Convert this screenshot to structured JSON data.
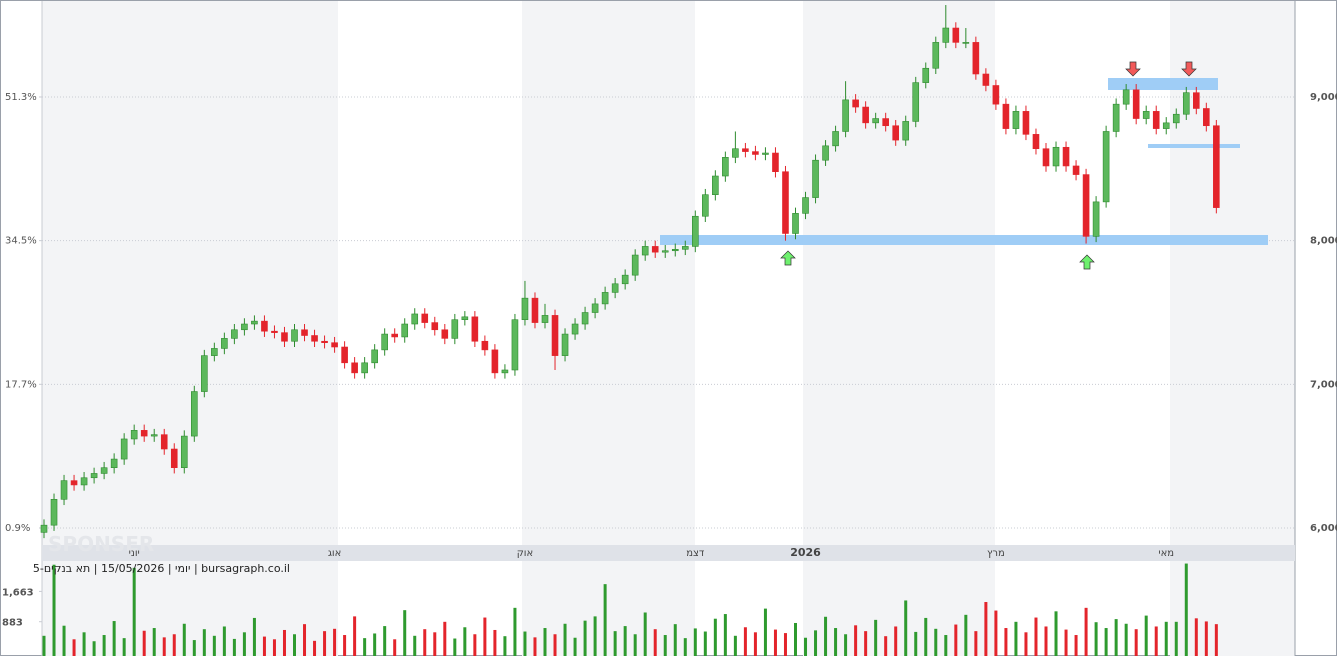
{
  "chart_data": {
    "type": "candlestick",
    "title": "יומי | 15/05/2026 | תא בנקים-5 | bursagraph.co.il",
    "watermark": "SPONSER",
    "categories": [
      null,
      null,
      null,
      null,
      null,
      null,
      null,
      null,
      null,
      "יוני",
      null,
      null,
      null,
      null,
      null,
      null,
      null,
      null,
      null,
      null,
      null,
      null,
      null,
      null,
      null,
      null,
      null,
      null,
      null,
      "אוג",
      null,
      null,
      null,
      null,
      null,
      null,
      null,
      null,
      null,
      null,
      null,
      null,
      null,
      null,
      null,
      null,
      null,
      null,
      "אוק",
      null,
      null,
      null,
      null,
      null,
      null,
      null,
      null,
      null,
      null,
      null,
      null,
      null,
      null,
      null,
      null,
      "דצמ",
      null,
      null,
      null,
      null,
      null,
      null,
      null,
      null,
      null,
      null,
      "2026",
      null,
      null,
      null,
      null,
      null,
      null,
      null,
      null,
      null,
      null,
      null,
      null,
      null,
      null,
      null,
      null,
      null,
      null,
      "מרץ",
      null,
      null,
      null,
      null,
      null,
      null,
      null,
      null,
      null,
      null,
      null,
      null,
      null,
      null,
      null,
      null,
      "מאי",
      null,
      null,
      null,
      null,
      null
    ],
    "ohlc": [
      [
        5970,
        6060,
        5930,
        6020
      ],
      [
        6020,
        6240,
        5980,
        6200
      ],
      [
        6200,
        6370,
        6160,
        6330
      ],
      [
        6330,
        6370,
        6260,
        6300
      ],
      [
        6300,
        6390,
        6260,
        6350
      ],
      [
        6350,
        6420,
        6310,
        6380
      ],
      [
        6380,
        6460,
        6340,
        6420
      ],
      [
        6420,
        6520,
        6380,
        6480
      ],
      [
        6480,
        6660,
        6440,
        6620
      ],
      [
        6620,
        6720,
        6580,
        6680
      ],
      [
        6680,
        6720,
        6600,
        6640
      ],
      [
        6640,
        6690,
        6600,
        6650
      ],
      [
        6650,
        6690,
        6510,
        6550
      ],
      [
        6550,
        6590,
        6380,
        6420
      ],
      [
        6420,
        6680,
        6380,
        6640
      ],
      [
        6640,
        6990,
        6600,
        6950
      ],
      [
        6950,
        7240,
        6910,
        7200
      ],
      [
        7200,
        7290,
        7160,
        7250
      ],
      [
        7250,
        7360,
        7210,
        7320
      ],
      [
        7320,
        7420,
        7280,
        7380
      ],
      [
        7380,
        7460,
        7340,
        7420
      ],
      [
        7420,
        7480,
        7380,
        7440
      ],
      [
        7440,
        7480,
        7330,
        7370
      ],
      [
        7370,
        7410,
        7320,
        7360
      ],
      [
        7360,
        7400,
        7260,
        7300
      ],
      [
        7300,
        7420,
        7260,
        7380
      ],
      [
        7380,
        7420,
        7300,
        7340
      ],
      [
        7340,
        7380,
        7260,
        7300
      ],
      [
        7300,
        7340,
        7250,
        7290
      ],
      [
        7290,
        7330,
        7220,
        7260
      ],
      [
        7260,
        7300,
        7110,
        7150
      ],
      [
        7150,
        7190,
        7040,
        7080
      ],
      [
        7080,
        7190,
        7040,
        7150
      ],
      [
        7150,
        7280,
        7110,
        7240
      ],
      [
        7240,
        7390,
        7200,
        7350
      ],
      [
        7350,
        7390,
        7290,
        7330
      ],
      [
        7330,
        7460,
        7290,
        7420
      ],
      [
        7420,
        7530,
        7380,
        7490
      ],
      [
        7490,
        7530,
        7390,
        7430
      ],
      [
        7430,
        7470,
        7340,
        7380
      ],
      [
        7380,
        7420,
        7280,
        7320
      ],
      [
        7320,
        7490,
        7280,
        7450
      ],
      [
        7450,
        7510,
        7410,
        7470
      ],
      [
        7470,
        7510,
        7260,
        7300
      ],
      [
        7300,
        7340,
        7200,
        7240
      ],
      [
        7240,
        7280,
        7040,
        7080
      ],
      [
        7080,
        7140,
        7040,
        7100
      ],
      [
        7100,
        7490,
        7060,
        7450
      ],
      [
        7450,
        7720,
        7410,
        7600
      ],
      [
        7600,
        7640,
        7390,
        7430
      ],
      [
        7430,
        7560,
        7390,
        7480
      ],
      [
        7480,
        7520,
        7100,
        7200
      ],
      [
        7200,
        7390,
        7160,
        7350
      ],
      [
        7350,
        7460,
        7310,
        7420
      ],
      [
        7420,
        7540,
        7380,
        7500
      ],
      [
        7500,
        7600,
        7460,
        7560
      ],
      [
        7560,
        7680,
        7520,
        7640
      ],
      [
        7640,
        7740,
        7600,
        7700
      ],
      [
        7700,
        7800,
        7660,
        7760
      ],
      [
        7760,
        7940,
        7720,
        7900
      ],
      [
        7900,
        8000,
        7860,
        7960
      ],
      [
        7960,
        8000,
        7880,
        7920
      ],
      [
        7920,
        7970,
        7880,
        7930
      ],
      [
        7930,
        7980,
        7890,
        7940
      ],
      [
        7940,
        8000,
        7900,
        7960
      ],
      [
        7960,
        8210,
        7920,
        8170
      ],
      [
        8170,
        8360,
        8130,
        8320
      ],
      [
        8320,
        8490,
        8280,
        8450
      ],
      [
        8450,
        8620,
        8410,
        8580
      ],
      [
        8580,
        8760,
        8540,
        8640
      ],
      [
        8640,
        8680,
        8580,
        8620
      ],
      [
        8620,
        8660,
        8560,
        8600
      ],
      [
        8600,
        8650,
        8560,
        8610
      ],
      [
        8610,
        8650,
        8440,
        8480
      ],
      [
        8480,
        8520,
        8000,
        8050
      ],
      [
        8050,
        8230,
        8010,
        8190
      ],
      [
        8190,
        8340,
        8150,
        8300
      ],
      [
        8300,
        8600,
        8260,
        8560
      ],
      [
        8560,
        8700,
        8520,
        8660
      ],
      [
        8660,
        8800,
        8620,
        8760
      ],
      [
        8760,
        9110,
        8720,
        8980
      ],
      [
        8980,
        9020,
        8890,
        8930
      ],
      [
        8930,
        8970,
        8780,
        8820
      ],
      [
        8820,
        8890,
        8780,
        8850
      ],
      [
        8850,
        8890,
        8760,
        8800
      ],
      [
        8800,
        8840,
        8660,
        8700
      ],
      [
        8700,
        8870,
        8660,
        8830
      ],
      [
        8830,
        9140,
        8790,
        9100
      ],
      [
        9100,
        9240,
        9060,
        9200
      ],
      [
        9200,
        9420,
        9160,
        9380
      ],
      [
        9380,
        9640,
        9340,
        9480
      ],
      [
        9480,
        9520,
        9340,
        9380
      ],
      [
        9380,
        9480,
        9340,
        9380
      ],
      [
        9380,
        9420,
        9120,
        9160
      ],
      [
        9160,
        9200,
        9040,
        9080
      ],
      [
        9080,
        9120,
        8910,
        8950
      ],
      [
        8950,
        8990,
        8740,
        8780
      ],
      [
        8780,
        8940,
        8740,
        8900
      ],
      [
        8900,
        8940,
        8700,
        8740
      ],
      [
        8740,
        8780,
        8600,
        8640
      ],
      [
        8640,
        8680,
        8480,
        8520
      ],
      [
        8520,
        8690,
        8480,
        8650
      ],
      [
        8650,
        8690,
        8480,
        8520
      ],
      [
        8520,
        8560,
        8420,
        8460
      ],
      [
        8460,
        8500,
        7980,
        8030
      ],
      [
        8030,
        8310,
        7990,
        8270
      ],
      [
        8270,
        8800,
        8230,
        8760
      ],
      [
        8760,
        8990,
        8720,
        8950
      ],
      [
        8950,
        9090,
        8910,
        9050
      ],
      [
        9050,
        9090,
        8810,
        8850
      ],
      [
        8850,
        8940,
        8810,
        8900
      ],
      [
        8900,
        8940,
        8740,
        8780
      ],
      [
        8780,
        8860,
        8740,
        8820
      ],
      [
        8820,
        8920,
        8780,
        8880
      ],
      [
        8880,
        9070,
        8840,
        9030
      ],
      [
        9030,
        9070,
        8880,
        8920
      ],
      [
        8920,
        8960,
        8760,
        8800
      ],
      [
        8800,
        8840,
        8190,
        8230
      ]
    ],
    "up_color": "#5cb85c",
    "down_color": "#e3242b",
    "ylim": [
      5882,
      9675
    ],
    "yticks": [
      {
        "value": 6000,
        "label": "6,000"
      },
      {
        "value": 7000,
        "label": "7,000"
      },
      {
        "value": 8000,
        "label": "8,000"
      },
      {
        "value": 9000,
        "label": "9,000"
      }
    ],
    "y2lim": [
      -1.09,
      62.64
    ],
    "y2ticks": [
      {
        "value": 0.9,
        "label": "0.9%"
      },
      {
        "value": 17.7,
        "label": "17.7%"
      },
      {
        "value": 34.5,
        "label": "34.5%"
      },
      {
        "value": 51.3,
        "label": "51.3%"
      }
    ],
    "grid": true,
    "volume": {
      "values": [
        520,
        2350,
        780,
        430,
        610,
        380,
        540,
        900,
        460,
        2270,
        650,
        720,
        480,
        560,
        830,
        410,
        690,
        520,
        760,
        440,
        610,
        980,
        500,
        430,
        670,
        560,
        820,
        390,
        640,
        700,
        540,
        1020,
        460,
        580,
        770,
        430,
        1180,
        520,
        690,
        610,
        880,
        450,
        740,
        560,
        990,
        670,
        510,
        1240,
        630,
        480,
        720,
        560,
        830,
        470,
        910,
        1020,
        1850,
        640,
        770,
        560,
        1120,
        690,
        540,
        820,
        460,
        710,
        630,
        960,
        1080,
        520,
        740,
        610,
        1220,
        680,
        590,
        850,
        470,
        660,
        1010,
        720,
        560,
        790,
        640,
        930,
        510,
        760,
        1430,
        620,
        980,
        700,
        540,
        810,
        1060,
        640,
        1390,
        1170,
        720,
        880,
        610,
        990,
        760,
        1150,
        680,
        540,
        1240,
        870,
        720,
        950,
        830,
        690,
        1040,
        760,
        880,
        880,
        2380,
        970,
        890,
        820
      ],
      "ylim": [
        0,
        2420
      ],
      "yticks": [
        883,
        {
          "value": 1663,
          "label": "1,663"
        }
      ]
    }
  }
}
